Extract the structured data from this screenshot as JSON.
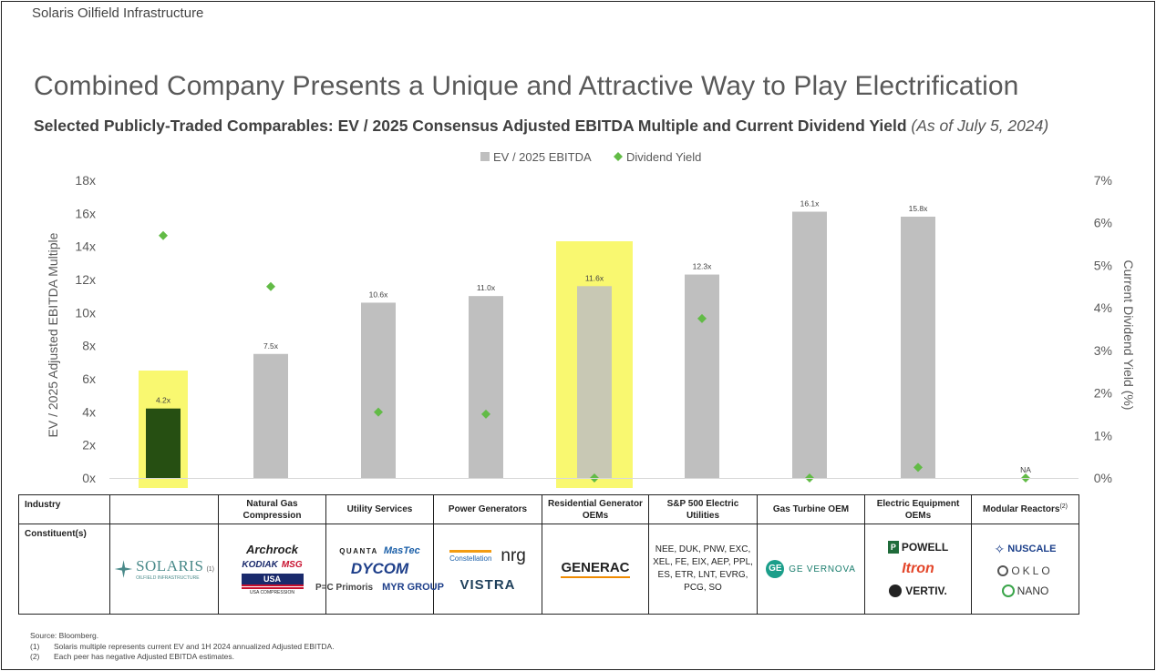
{
  "header": {
    "company": "Solaris Oilfield Infrastructure",
    "title": "Combined Company Presents a Unique and Attractive Way to Play Electrification",
    "subtitle_main": "Selected Publicly-Traded Comparables: EV / 2025 Consensus Adjusted EBITDA Multiple and Current Dividend Yield",
    "subtitle_asof": "(As of July 5, 2024)"
  },
  "colors": {
    "bar": "#bfbfbf",
    "bar_solaris": "#264f12",
    "highlight": "#f9f870",
    "diamond": "#62bb46"
  },
  "chart_data": {
    "type": "bar",
    "categories": [
      "Solaris",
      "Natural Gas Compression",
      "Utility Services",
      "Power Generators",
      "Residential Generator OEMs",
      "S&P 500 Electric Utilities",
      "Gas Turbine OEM",
      "Electric Equipment OEMs",
      "Modular Reactors"
    ],
    "series": [
      {
        "name": "EV / 2025 EBITDA",
        "axis": "left",
        "values": [
          4.2,
          7.5,
          10.6,
          11.0,
          11.6,
          12.3,
          16.1,
          15.8,
          null
        ]
      },
      {
        "name": "Dividend Yield",
        "axis": "right",
        "values": [
          5.7,
          4.5,
          1.55,
          1.5,
          0.0,
          3.75,
          0.0,
          0.25,
          0.0
        ]
      }
    ],
    "data_labels": [
      "4.2x",
      "7.5x",
      "10.6x",
      "11.0x",
      "11.6x",
      "12.3x",
      "16.1x",
      "15.8x",
      "NA"
    ],
    "highlighted": [
      "Solaris",
      "Residential Generator OEMs"
    ],
    "ylabel": "EV / 2025 Adjusted EBITDA Multiple",
    "ylabel_right": "Current  Dividend Yield (%)",
    "ylim": [
      0,
      18
    ],
    "ylim_right": [
      0,
      7
    ],
    "yticks": [
      "0x",
      "2x",
      "4x",
      "6x",
      "8x",
      "10x",
      "12x",
      "14x",
      "16x",
      "18x"
    ],
    "yticks_right": [
      "0%",
      "1%",
      "2%",
      "3%",
      "4%",
      "5%",
      "6%",
      "7%"
    ],
    "legend": [
      "EV / 2025 EBITDA",
      "Dividend Yield"
    ],
    "legend_position": "top-center",
    "grid": false
  },
  "table": {
    "row1_label": "Industry",
    "row2_label": "Constituent(s)",
    "industries": [
      "",
      "Natural Gas Compression",
      "Utility Services",
      "Power Generators",
      "Residential Generator OEMs",
      "S&P 500 Electric Utilities",
      "Gas Turbine OEM",
      "Electric Equipment OEMs",
      "Modular Reactors"
    ],
    "modular_note": "(2)",
    "solaris": {
      "name": "SOLARIS",
      "tagline": "OILFIELD INFRASTRUCTURE",
      "note": "(1)"
    },
    "nat_gas": [
      "Archrock",
      "KODIAK",
      "MSG",
      "USA COMPRESSION"
    ],
    "utility": [
      "QUANTA",
      "MasTec",
      "DYCOM",
      "P=C Primoris",
      "MYR GROUP"
    ],
    "power": [
      "Constellation",
      "nrg",
      "VISTRA"
    ],
    "residential": [
      "GENERAC"
    ],
    "sp500": [
      "NEE, DUK, PNW, EXC,",
      "XEL, FE, EIX, AEP, PPL,",
      "ES, ETR, LNT, EVRG,",
      "PCG, SO"
    ],
    "turbine": [
      "GE VERNOVA"
    ],
    "electric": [
      "POWELL",
      "Itron",
      "VERTIV."
    ],
    "modular": [
      "NUSCALE",
      "OKLO",
      "NANO"
    ]
  },
  "notes": {
    "source": "Source: Bloomberg.",
    "n1_num": "(1)",
    "n1": "Solaris multiple represents current EV and 1H 2024 annualized Adjusted EBITDA.",
    "n2_num": "(2)",
    "n2": "Each peer has negative Adjusted EBITDA estimates."
  }
}
